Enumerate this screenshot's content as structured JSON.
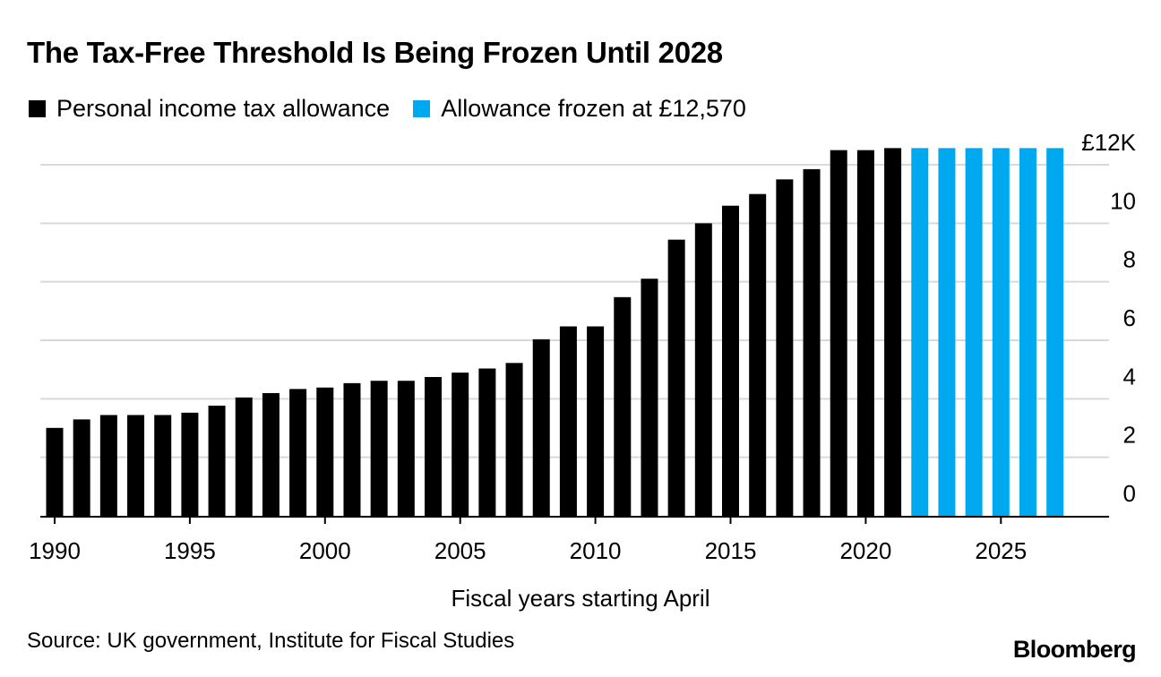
{
  "header": {
    "title": "The Tax-Free Threshold Is Being Frozen Until 2028"
  },
  "legend": {
    "items": [
      {
        "label": "Personal income tax allowance",
        "color": "#000000"
      },
      {
        "label": "Allowance frozen at £12,570",
        "color": "#00a8f0"
      }
    ]
  },
  "footer": {
    "source": "Source: UK government, Institute for Fiscal Studies",
    "brand": "Bloomberg"
  },
  "chart_data": {
    "type": "bar",
    "xlabel": "Fiscal years starting April",
    "ylabel": "",
    "ylim": [
      0,
      12.6
    ],
    "yunit_label": "£12K",
    "yticks": [
      {
        "value": 0,
        "label": "0"
      },
      {
        "value": 2,
        "label": "2"
      },
      {
        "value": 4,
        "label": "4"
      },
      {
        "value": 6,
        "label": "6"
      },
      {
        "value": 8,
        "label": "8"
      },
      {
        "value": 10,
        "label": "10"
      },
      {
        "value": 12,
        "label": "£12K"
      }
    ],
    "xticks": [
      "1990",
      "1995",
      "2000",
      "2005",
      "2010",
      "2015",
      "2020",
      "2025"
    ],
    "grid": true,
    "legend_position": "top-left",
    "categories": [
      1990,
      1991,
      1992,
      1993,
      1994,
      1995,
      1996,
      1997,
      1998,
      1999,
      2000,
      2001,
      2002,
      2003,
      2004,
      2005,
      2006,
      2007,
      2008,
      2009,
      2010,
      2011,
      2012,
      2013,
      2014,
      2015,
      2016,
      2017,
      2018,
      2019,
      2020,
      2021,
      2022,
      2023,
      2024,
      2025,
      2026,
      2027
    ],
    "series": [
      {
        "name": "Personal income tax allowance",
        "color": "#000000",
        "values": [
          3.005,
          3.295,
          3.445,
          3.445,
          3.445,
          3.525,
          3.765,
          4.045,
          4.195,
          4.335,
          4.385,
          4.535,
          4.615,
          4.615,
          4.745,
          4.895,
          5.035,
          5.225,
          6.035,
          6.475,
          6.475,
          7.475,
          8.105,
          9.44,
          10.0,
          10.6,
          11.0,
          11.5,
          11.85,
          12.5,
          12.5,
          12.57,
          null,
          null,
          null,
          null,
          null,
          null
        ]
      },
      {
        "name": "Allowance frozen at £12,570",
        "color": "#00a8f0",
        "values": [
          null,
          null,
          null,
          null,
          null,
          null,
          null,
          null,
          null,
          null,
          null,
          null,
          null,
          null,
          null,
          null,
          null,
          null,
          null,
          null,
          null,
          null,
          null,
          null,
          null,
          null,
          null,
          null,
          null,
          null,
          null,
          null,
          12.57,
          12.57,
          12.57,
          12.57,
          12.57,
          12.57
        ]
      }
    ]
  }
}
